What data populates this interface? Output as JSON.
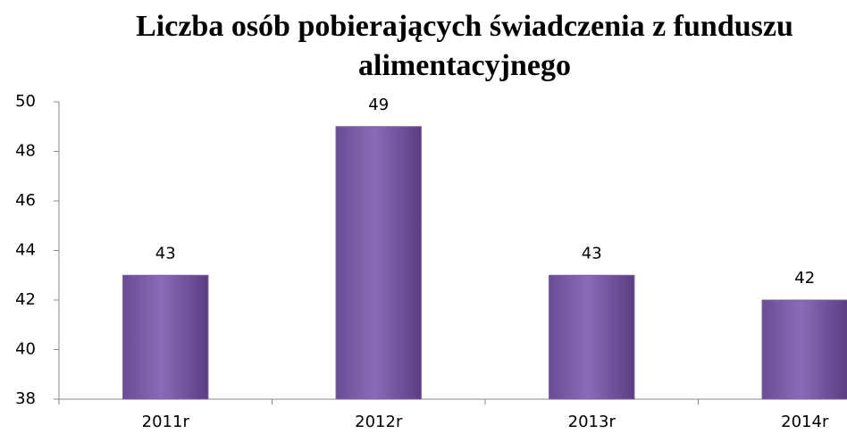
{
  "chart_data": {
    "type": "bar",
    "title": "Liczba osób pobierających świadczenia z funduszu alimentacyjnego",
    "categories": [
      "2011r",
      "2012r",
      "2013r",
      "2014r"
    ],
    "values": [
      43,
      49,
      43,
      42
    ],
    "color": "#7f5fa8",
    "ylim": [
      38,
      50
    ],
    "yticks": [
      38,
      40,
      42,
      44,
      46,
      48,
      50
    ],
    "grid": false
  }
}
